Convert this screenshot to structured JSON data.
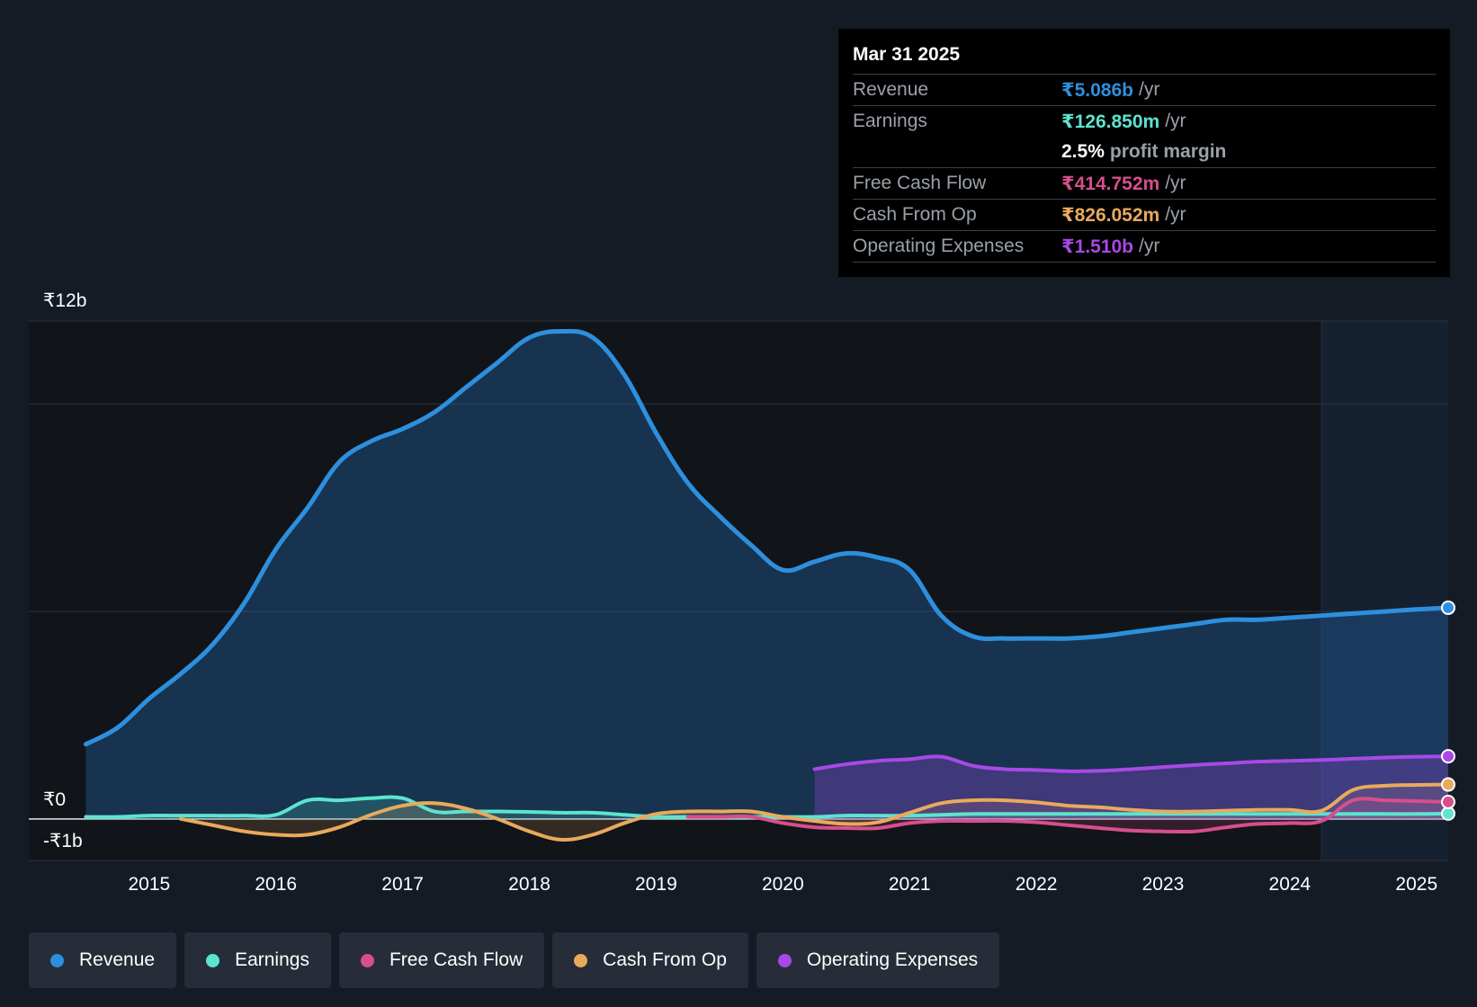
{
  "tooltip": {
    "date": "Mar 31 2025",
    "revenue": {
      "label": "Revenue",
      "value": "₹5.086b",
      "unit": "/yr",
      "color": "#2d8fdd"
    },
    "earnings": {
      "label": "Earnings",
      "value": "₹126.850m",
      "unit": "/yr",
      "color": "#5ce4cf"
    },
    "margin": {
      "value": "2.5%",
      "text": "profit margin"
    },
    "fcf": {
      "label": "Free Cash Flow",
      "value": "₹414.752m",
      "unit": "/yr",
      "color": "#d64f8c"
    },
    "cfo": {
      "label": "Cash From Op",
      "value": "₹826.052m",
      "unit": "/yr",
      "color": "#e8aa5c"
    },
    "opex": {
      "label": "Operating Expenses",
      "value": "₹1.510b",
      "unit": "/yr",
      "color": "#a849e6"
    }
  },
  "legend": [
    {
      "label": "Revenue",
      "color": "#2d8fdd"
    },
    {
      "label": "Earnings",
      "color": "#5ce4cf"
    },
    {
      "label": "Free Cash Flow",
      "color": "#d64f8c"
    },
    {
      "label": "Cash From Op",
      "color": "#e8aa5c"
    },
    {
      "label": "Operating Expenses",
      "color": "#a849e6"
    }
  ],
  "chart_data": {
    "type": "line",
    "y_unit": "₹ billions",
    "ylim": [
      -1,
      12
    ],
    "y_ticks": [
      {
        "value": 12,
        "label": "₹12b"
      },
      {
        "value": 0,
        "label": "₹0"
      },
      {
        "value": -1,
        "label": "-₹1b"
      }
    ],
    "gridlines": [
      12,
      10,
      5,
      0,
      -1
    ],
    "xlim": [
      2014.05,
      2025.25
    ],
    "x_ticks": [
      "2015",
      "2016",
      "2017",
      "2018",
      "2019",
      "2020",
      "2021",
      "2022",
      "2023",
      "2024",
      "2025"
    ],
    "forecast_start": 2024.25,
    "series": [
      {
        "name": "Revenue",
        "color": "#2d8fdd",
        "fill": true,
        "x": [
          2014.5,
          2014.75,
          2015.0,
          2015.25,
          2015.5,
          2015.75,
          2016.0,
          2016.25,
          2016.5,
          2016.75,
          2017.0,
          2017.25,
          2017.5,
          2017.75,
          2018.0,
          2018.25,
          2018.5,
          2018.75,
          2019.0,
          2019.25,
          2019.5,
          2019.75,
          2020.0,
          2020.25,
          2020.5,
          2020.75,
          2021.0,
          2021.25,
          2021.5,
          2021.75,
          2022.0,
          2022.25,
          2022.5,
          2022.75,
          2023.0,
          2023.25,
          2023.5,
          2023.75,
          2024.0,
          2024.25,
          2024.5,
          2024.75,
          2025.0,
          2025.25
        ],
        "y": [
          1.8,
          2.2,
          2.9,
          3.5,
          4.2,
          5.2,
          6.5,
          7.5,
          8.6,
          9.1,
          9.4,
          9.8,
          10.4,
          11.0,
          11.6,
          11.75,
          11.6,
          10.7,
          9.3,
          8.1,
          7.3,
          6.6,
          6.0,
          6.2,
          6.4,
          6.3,
          6.0,
          4.9,
          4.4,
          4.35,
          4.35,
          4.35,
          4.4,
          4.5,
          4.6,
          4.7,
          4.8,
          4.8,
          4.85,
          4.9,
          4.95,
          5.0,
          5.05,
          5.09
        ]
      },
      {
        "name": "Earnings",
        "color": "#5ce4cf",
        "fill": true,
        "x": [
          2014.5,
          2014.75,
          2015.0,
          2015.25,
          2015.5,
          2015.75,
          2016.0,
          2016.25,
          2016.5,
          2016.75,
          2017.0,
          2017.25,
          2017.5,
          2017.75,
          2018.0,
          2018.25,
          2018.5,
          2018.75,
          2019.0,
          2019.25,
          2019.5,
          2019.75,
          2020.0,
          2020.25,
          2020.5,
          2020.75,
          2021.0,
          2021.25,
          2021.5,
          2021.75,
          2022.0,
          2022.25,
          2022.5,
          2022.75,
          2023.0,
          2023.25,
          2023.5,
          2023.75,
          2024.0,
          2024.25,
          2024.5,
          2024.75,
          2025.0,
          2025.25
        ],
        "y": [
          0.05,
          0.05,
          0.08,
          0.08,
          0.08,
          0.08,
          0.1,
          0.45,
          0.45,
          0.5,
          0.5,
          0.18,
          0.18,
          0.18,
          0.17,
          0.15,
          0.15,
          0.1,
          0.05,
          0.05,
          0.05,
          0.05,
          0.05,
          0.05,
          0.08,
          0.08,
          0.08,
          0.1,
          0.12,
          0.12,
          0.12,
          0.12,
          0.12,
          0.12,
          0.12,
          0.12,
          0.12,
          0.12,
          0.12,
          0.12,
          0.12,
          0.12,
          0.12,
          0.13
        ]
      },
      {
        "name": "Free Cash Flow",
        "color": "#d64f8c",
        "fill": true,
        "x": [
          2019.25,
          2019.5,
          2019.75,
          2020.0,
          2020.25,
          2020.5,
          2020.75,
          2021.0,
          2021.25,
          2021.5,
          2021.75,
          2022.0,
          2022.25,
          2022.5,
          2022.75,
          2023.0,
          2023.25,
          2023.5,
          2023.75,
          2024.0,
          2024.25,
          2024.5,
          2024.75,
          2025.0,
          2025.25
        ],
        "y": [
          0.05,
          0.05,
          0.05,
          -0.1,
          -0.2,
          -0.22,
          -0.22,
          -0.1,
          -0.05,
          -0.05,
          -0.05,
          -0.08,
          -0.15,
          -0.22,
          -0.28,
          -0.3,
          -0.3,
          -0.2,
          -0.12,
          -0.1,
          -0.05,
          0.45,
          0.45,
          0.43,
          0.41
        ]
      },
      {
        "name": "Cash From Op",
        "color": "#e8aa5c",
        "fill": true,
        "x": [
          2015.25,
          2015.5,
          2015.75,
          2016.0,
          2016.25,
          2016.5,
          2016.75,
          2017.0,
          2017.25,
          2017.5,
          2017.75,
          2018.0,
          2018.25,
          2018.5,
          2018.75,
          2019.0,
          2019.25,
          2019.5,
          2019.75,
          2020.0,
          2020.25,
          2020.5,
          2020.75,
          2021.0,
          2021.25,
          2021.5,
          2021.75,
          2022.0,
          2022.25,
          2022.5,
          2022.75,
          2023.0,
          2023.25,
          2023.5,
          2023.75,
          2024.0,
          2024.25,
          2024.5,
          2024.75,
          2025.0,
          2025.25
        ],
        "y": [
          0.0,
          -0.15,
          -0.3,
          -0.38,
          -0.38,
          -0.2,
          0.1,
          0.32,
          0.38,
          0.25,
          0.0,
          -0.3,
          -0.5,
          -0.38,
          -0.1,
          0.12,
          0.18,
          0.18,
          0.18,
          0.05,
          -0.05,
          -0.12,
          -0.08,
          0.15,
          0.38,
          0.45,
          0.45,
          0.4,
          0.32,
          0.28,
          0.22,
          0.18,
          0.18,
          0.2,
          0.22,
          0.22,
          0.2,
          0.7,
          0.8,
          0.82,
          0.83
        ]
      },
      {
        "name": "Operating Expenses",
        "color": "#a849e6",
        "fill": true,
        "x": [
          2020.25,
          2020.5,
          2020.75,
          2021.0,
          2021.25,
          2021.5,
          2021.75,
          2022.0,
          2022.25,
          2022.5,
          2022.75,
          2023.0,
          2023.25,
          2023.5,
          2023.75,
          2024.0,
          2024.25,
          2024.5,
          2024.75,
          2025.0,
          2025.25
        ],
        "y": [
          1.2,
          1.32,
          1.4,
          1.44,
          1.5,
          1.28,
          1.2,
          1.18,
          1.15,
          1.16,
          1.2,
          1.25,
          1.3,
          1.34,
          1.38,
          1.4,
          1.42,
          1.45,
          1.48,
          1.5,
          1.51
        ]
      }
    ]
  }
}
